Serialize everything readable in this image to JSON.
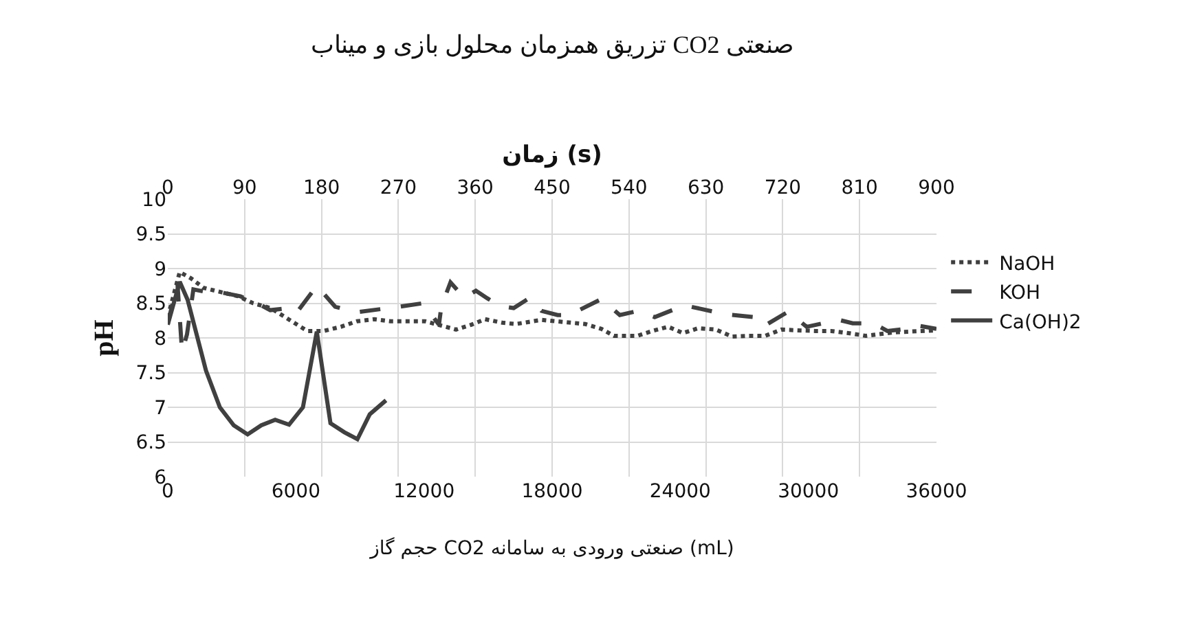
{
  "chart_data": {
    "type": "line",
    "title": "تزریق همزمان محلول بازی و میناب CO2 صنعتی",
    "xlabel": "حجم گاز CO2 صنعتی ورودی به سامانه (mL)",
    "x2label": "زمان (s)",
    "ylabel": "pH",
    "xlim": [
      0,
      36000
    ],
    "xticks": [
      0,
      6000,
      12000,
      18000,
      24000,
      30000,
      36000
    ],
    "x2lim": [
      0,
      900
    ],
    "x2ticks": [
      0,
      90,
      180,
      270,
      360,
      450,
      540,
      630,
      720,
      810,
      900
    ],
    "ylim": [
      6,
      10
    ],
    "yticks": [
      6,
      {
        "value": 6.5,
        "label": "6.5"
      },
      7,
      {
        "value": 7.5,
        "label": "7.5"
      },
      8,
      {
        "value": 8.5,
        "label": "8.5"
      },
      9,
      {
        "value": 9.5,
        "label": "9.5"
      },
      10
    ],
    "grid": true,
    "legend": "right",
    "marker": "none",
    "series": [
      {
        "name": "NaOH",
        "color": "#404040",
        "line_style": "dotted",
        "x": [
          0,
          560,
          1080,
          1690,
          3300,
          4000,
          4820,
          5960,
          6540,
          7300,
          8100,
          8860,
          9680,
          10430,
          11250,
          12050,
          13500,
          14210,
          14860,
          15660,
          16300,
          17500,
          19550,
          20310,
          20900,
          21990,
          22690,
          23440,
          24130,
          24850,
          25670,
          26420,
          27180,
          27980,
          28740,
          29490,
          30310,
          31070,
          31870,
          32690,
          34000,
          36000
        ],
        "values": [
          8.3,
          8.95,
          8.86,
          8.72,
          8.6,
          8.5,
          8.43,
          8.21,
          8.1,
          8.1,
          8.16,
          8.24,
          8.27,
          8.24,
          8.24,
          8.24,
          8.12,
          8.19,
          8.27,
          8.22,
          8.2,
          8.26,
          8.2,
          8.13,
          8.03,
          8.03,
          8.1,
          8.16,
          8.07,
          8.14,
          8.12,
          8.02,
          8.03,
          8.03,
          8.12,
          8.11,
          8.1,
          8.1,
          8.07,
          8.03,
          8.08,
          8.11
        ]
      },
      {
        "name": "KOH",
        "color": "#404040",
        "line_style": "dashed",
        "x": [
          0,
          450,
          670,
          900,
          1200,
          2000,
          2600,
          3400,
          4200,
          4800,
          5400,
          6000,
          6980,
          7840,
          8810,
          10860,
          11950,
          12700,
          12810,
          13240,
          13890,
          14430,
          14970,
          15560,
          16200,
          16960,
          17500,
          18260,
          18800,
          20310,
          21170,
          22040,
          22800,
          24200,
          26140,
          27440,
          27870,
          29060,
          29920,
          31430,
          32080,
          33050,
          33700,
          34560,
          35100,
          36000
        ],
        "values": [
          8.2,
          8.8,
          7.8,
          8.05,
          8.7,
          8.65,
          8.65,
          8.6,
          8.5,
          8.4,
          8.42,
          8.35,
          8.75,
          8.45,
          8.37,
          8.45,
          8.5,
          8.19,
          8.45,
          8.8,
          8.58,
          8.68,
          8.57,
          8.46,
          8.43,
          8.58,
          8.39,
          8.33,
          8.33,
          8.56,
          8.33,
          8.39,
          8.3,
          8.47,
          8.34,
          8.3,
          8.16,
          8.38,
          8.16,
          8.26,
          8.21,
          8.21,
          8.1,
          8.13,
          8.18,
          8.13
        ]
      },
      {
        "name": "Ca(OH)2",
        "color": "#404040",
        "line_style": "solid",
        "x": [
          0,
          560,
          930,
          1790,
          2440,
          3090,
          3740,
          4380,
          5030,
          5680,
          6330,
          6980,
          7620,
          8270,
          8880,
          9460,
          10220
        ],
        "values": [
          8.19,
          8.81,
          8.55,
          7.53,
          7.0,
          6.74,
          6.61,
          6.74,
          6.82,
          6.75,
          7.0,
          8.09,
          6.77,
          6.64,
          6.54,
          6.9,
          7.1
        ]
      }
    ]
  }
}
